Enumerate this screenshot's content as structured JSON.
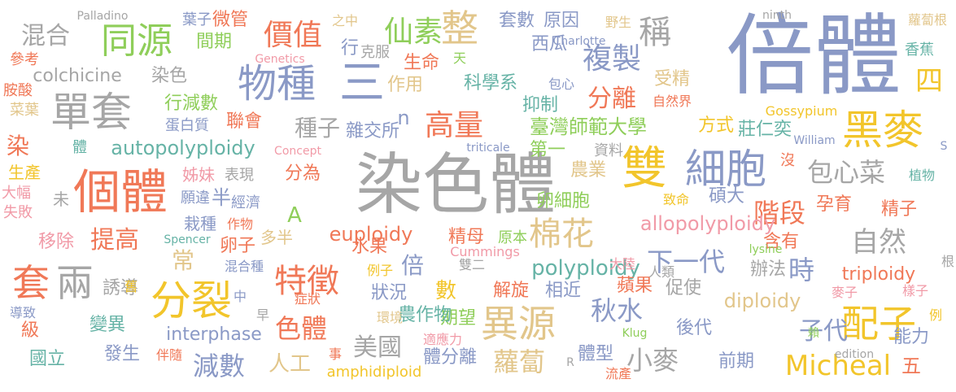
{
  "words": [
    {
      "text": "倍體",
      "color": "#8a99c6"
    },
    {
      "text": "染色體",
      "color": "#a6a6a6"
    },
    {
      "text": "雙",
      "color": "#f2c52b"
    },
    {
      "text": "個體",
      "color": "#f07857"
    },
    {
      "text": "細胞",
      "color": "#8a99c6"
    },
    {
      "text": "黑麥",
      "color": "#f2c52b"
    },
    {
      "text": "單套",
      "color": "#a6a6a6"
    },
    {
      "text": "物種",
      "color": "#8a99c6"
    },
    {
      "text": "同源",
      "color": "#8fce5a"
    },
    {
      "text": "三",
      "color": "#8a99c6"
    },
    {
      "text": "整",
      "color": "#e2c68b"
    },
    {
      "text": "分裂",
      "color": "#f2c52b"
    },
    {
      "text": "套",
      "color": "#f07857"
    },
    {
      "text": "兩",
      "color": "#a6a6a6"
    },
    {
      "text": "特徵",
      "color": "#f07857"
    },
    {
      "text": "異源",
      "color": "#e2c68b"
    },
    {
      "text": "配子",
      "color": "#f2c52b"
    },
    {
      "text": "棉花",
      "color": "#e2c68b"
    },
    {
      "text": "稱",
      "color": "#a6a6a6"
    },
    {
      "text": "四",
      "color": "#f2c52b"
    },
    {
      "text": "仙素",
      "color": "#8fce5a"
    },
    {
      "text": "價值",
      "color": "#f07857"
    },
    {
      "text": "混合",
      "color": "#a6a6a6"
    },
    {
      "text": "複製",
      "color": "#8a99c6"
    },
    {
      "text": "高量",
      "color": "#f07857"
    },
    {
      "text": "包心菜",
      "color": "#a6a6a6"
    },
    {
      "text": "自然",
      "color": "#a6a6a6"
    },
    {
      "text": "Micheal",
      "color": "#f2c52b"
    },
    {
      "text": "秋水",
      "color": "#8a99c6"
    },
    {
      "text": "小麥",
      "color": "#a6a6a6"
    },
    {
      "text": "蘿蔔",
      "color": "#e2c68b"
    },
    {
      "text": "減數",
      "color": "#8a99c6"
    },
    {
      "text": "美國",
      "color": "#a6a6a6"
    },
    {
      "text": "色體",
      "color": "#f07857"
    },
    {
      "text": "提高",
      "color": "#f07857"
    },
    {
      "text": "下一代",
      "color": "#8a99c6"
    },
    {
      "text": "階段",
      "color": "#f07857"
    },
    {
      "text": "時",
      "color": "#8a99c6"
    },
    {
      "text": "子代",
      "color": "#8a99c6"
    },
    {
      "text": "分離",
      "color": "#f07857"
    },
    {
      "text": "種子",
      "color": "#a6a6a6"
    },
    {
      "text": "染",
      "color": "#f07857"
    },
    {
      "text": "常",
      "color": "#e2c68b"
    },
    {
      "text": "倍",
      "color": "#8a99c6"
    },
    {
      "text": "半",
      "color": "#8a99c6"
    },
    {
      "text": "A",
      "color": "#8fce5a"
    },
    {
      "text": "n",
      "color": "#8a99c6"
    },
    {
      "text": "數",
      "color": "#f2c52b"
    },
    {
      "text": "人工",
      "color": "#e2c68b"
    },
    {
      "text": "五",
      "color": "#f07857"
    },
    {
      "text": "polyploidy",
      "color": "#66b3a6"
    },
    {
      "text": "allopolyploidy",
      "color": "#f19aa7"
    },
    {
      "text": "autopolyploidy",
      "color": "#66b3a6"
    },
    {
      "text": "euploidy",
      "color": "#f07857"
    },
    {
      "text": "diploidy",
      "color": "#e2c68b"
    },
    {
      "text": "triploidy",
      "color": "#f07857"
    },
    {
      "text": "interphase",
      "color": "#8a99c6"
    },
    {
      "text": "colchicine",
      "color": "#a6a6a6"
    },
    {
      "text": "amphidiploid",
      "color": "#f2c52b"
    },
    {
      "text": "臺灣師範大學",
      "color": "#8fce5a"
    },
    {
      "text": "套數",
      "color": "#8a99c6"
    },
    {
      "text": "原因",
      "color": "#8a99c6"
    },
    {
      "text": "西瓜",
      "color": "#8a99c6"
    },
    {
      "text": "生命",
      "color": "#f07857"
    },
    {
      "text": "科學系",
      "color": "#66b3a6"
    },
    {
      "text": "作用",
      "color": "#e2c68b"
    },
    {
      "text": "受精",
      "color": "#e2c68b"
    },
    {
      "text": "抑制",
      "color": "#66b3a6"
    },
    {
      "text": "方式",
      "color": "#f2c52b"
    },
    {
      "text": "莊仁奕",
      "color": "#66b3a6"
    },
    {
      "text": "雜交所",
      "color": "#8a99c6"
    },
    {
      "text": "第一",
      "color": "#8fce5a"
    },
    {
      "text": "資料",
      "color": "#a6a6a6"
    },
    {
      "text": "農業",
      "color": "#e2c68b"
    },
    {
      "text": "碩大",
      "color": "#8a99c6"
    },
    {
      "text": "孕育",
      "color": "#f07857"
    },
    {
      "text": "精子",
      "color": "#f07857"
    },
    {
      "text": "卵細胞",
      "color": "#8fce5a"
    },
    {
      "text": "精母",
      "color": "#f07857"
    },
    {
      "text": "水果",
      "color": "#f07857"
    },
    {
      "text": "原本",
      "color": "#8fce5a"
    },
    {
      "text": "分為",
      "color": "#f07857"
    },
    {
      "text": "含有",
      "color": "#f07857"
    },
    {
      "text": "辦法",
      "color": "#a6a6a6"
    },
    {
      "text": "蘋果",
      "color": "#f07857"
    },
    {
      "text": "促使",
      "color": "#a6a6a6"
    },
    {
      "text": "相近",
      "color": "#8a99c6"
    },
    {
      "text": "解旋",
      "color": "#f07857"
    },
    {
      "text": "狀況",
      "color": "#8a99c6"
    },
    {
      "text": "期望",
      "color": "#8fce5a"
    },
    {
      "text": "農作物",
      "color": "#66b3a6"
    },
    {
      "text": "體分離",
      "color": "#8a99c6"
    },
    {
      "text": "體型",
      "color": "#8a99c6"
    },
    {
      "text": "前期",
      "color": "#8a99c6"
    },
    {
      "text": "後代",
      "color": "#8a99c6"
    },
    {
      "text": "能力",
      "color": "#8a99c6"
    },
    {
      "text": "發生",
      "color": "#8a99c6"
    },
    {
      "text": "國立",
      "color": "#66b3a6"
    },
    {
      "text": "級",
      "color": "#f07857"
    },
    {
      "text": "變異",
      "color": "#66b3a6"
    },
    {
      "text": "誘導",
      "color": "#a6a6a6"
    },
    {
      "text": "移除",
      "color": "#f19aa7"
    },
    {
      "text": "卵子",
      "color": "#f07857"
    },
    {
      "text": "多半",
      "color": "#e2c68b"
    },
    {
      "text": "栽種",
      "color": "#8a99c6"
    },
    {
      "text": "姊妹",
      "color": "#f19aa7"
    },
    {
      "text": "表現",
      "color": "#a6a6a6"
    },
    {
      "text": "願違",
      "color": "#8a99c6"
    },
    {
      "text": "經濟",
      "color": "#8a99c6"
    },
    {
      "text": "作物",
      "color": "#f07857"
    },
    {
      "text": "聯會",
      "color": "#f07857"
    },
    {
      "text": "行減數",
      "color": "#8fce5a"
    },
    {
      "text": "蛋白質",
      "color": "#8a99c6"
    },
    {
      "text": "體",
      "color": "#66b3a6"
    },
    {
      "text": "生產",
      "color": "#f2c52b"
    },
    {
      "text": "大幅",
      "color": "#f19aa7"
    },
    {
      "text": "失敗",
      "color": "#f19aa7"
    },
    {
      "text": "未",
      "color": "#a6a6a6"
    },
    {
      "text": "胺酸",
      "color": "#f07857"
    },
    {
      "text": "菜葉",
      "color": "#e2c68b"
    },
    {
      "text": "參考",
      "color": "#f07857"
    },
    {
      "text": "染色",
      "color": "#a6a6a6"
    },
    {
      "text": "間期",
      "color": "#8fce5a"
    },
    {
      "text": "葉子",
      "color": "#8a99c6"
    },
    {
      "text": "微管",
      "color": "#f07857"
    },
    {
      "text": "行",
      "color": "#8a99c6"
    },
    {
      "text": "克服",
      "color": "#a6a6a6"
    },
    {
      "text": "之中",
      "color": "#e2c68b"
    },
    {
      "text": "天",
      "color": "#8fce5a"
    },
    {
      "text": "包心",
      "color": "#8a99c6"
    },
    {
      "text": "自然界",
      "color": "#f07857"
    },
    {
      "text": "野生",
      "color": "#e2c68b"
    },
    {
      "text": "蘿蔔根",
      "color": "#e2c68b"
    },
    {
      "text": "香蕉",
      "color": "#66b3a6"
    },
    {
      "text": "植物",
      "color": "#66b3a6"
    },
    {
      "text": "致命",
      "color": "#f2c52b"
    },
    {
      "text": "沒",
      "color": "#f07857"
    },
    {
      "text": "根",
      "color": "#a6a6a6"
    },
    {
      "text": "例",
      "color": "#f2c52b"
    },
    {
      "text": "賴",
      "color": "#8fce5a"
    },
    {
      "text": "樣子",
      "color": "#f19aa7"
    },
    {
      "text": "麥子",
      "color": "#f19aa7"
    },
    {
      "text": "人類",
      "color": "#a6a6a6"
    },
    {
      "text": "大陸",
      "color": "#f19aa7"
    },
    {
      "text": "流產",
      "color": "#f07857"
    },
    {
      "text": "適應力",
      "color": "#f19aa7"
    },
    {
      "text": "環境",
      "color": "#e2c68b"
    },
    {
      "text": "症狀",
      "color": "#f07857"
    },
    {
      "text": "雙二",
      "color": "#a6a6a6"
    },
    {
      "text": "例子",
      "color": "#f2c52b"
    },
    {
      "text": "混合種",
      "color": "#8a99c6"
    },
    {
      "text": "舊",
      "color": "#f2c52b"
    },
    {
      "text": "中",
      "color": "#8a99c6"
    },
    {
      "text": "早",
      "color": "#a6a6a6"
    },
    {
      "text": "導致",
      "color": "#8a99c6"
    },
    {
      "text": "伴隨",
      "color": "#f07857"
    },
    {
      "text": "事",
      "color": "#f07857"
    },
    {
      "text": "Palladino",
      "color": "#a6a6a6"
    },
    {
      "text": "Genetics",
      "color": "#f19aa7"
    },
    {
      "text": "Charlotte",
      "color": "#8a99c6"
    },
    {
      "text": "ninth",
      "color": "#a6a6a6"
    },
    {
      "text": "Gossypium",
      "color": "#f2c52b"
    },
    {
      "text": "Concept",
      "color": "#f19aa7"
    },
    {
      "text": "triticale",
      "color": "#8a99c6"
    },
    {
      "text": "William",
      "color": "#8a99c6"
    },
    {
      "text": "S",
      "color": "#8a99c6"
    },
    {
      "text": "Spencer",
      "color": "#66b3a6"
    },
    {
      "text": "Cummings",
      "color": "#f19aa7"
    },
    {
      "text": "lysine",
      "color": "#8fce5a"
    },
    {
      "text": "Klug",
      "color": "#8fce5a"
    },
    {
      "text": "edition",
      "color": "#a6a6a6"
    },
    {
      "text": "R",
      "color": "#a6a6a6"
    }
  ]
}
